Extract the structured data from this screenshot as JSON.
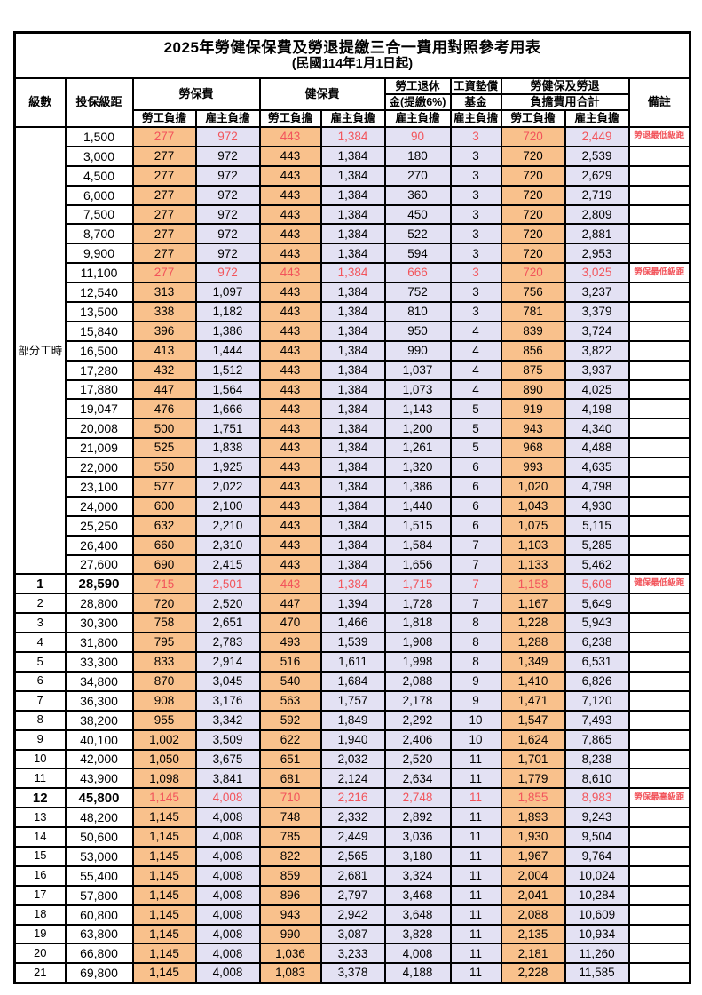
{
  "title": {
    "main": "2025年勞健保保費及勞退提繳三合一費用對照參考用表",
    "sub": "(民國114年1月1日起)"
  },
  "header": {
    "level": "級數",
    "bracket": "投保級距",
    "labor_insurance": "勞保費",
    "health_insurance": "健保費",
    "pension_line1": "勞工退休",
    "pension_line2": "金(提繳6%)",
    "wage_fund_line1": "工資墊償",
    "wage_fund_line2": "基金",
    "total_line1": "勞健保及勞退",
    "total_line2": "負擔費用合計",
    "remark": "備註",
    "employee": "勞工負擔",
    "employer": "雇主負擔"
  },
  "colors": {
    "employee_fill": "#f9c18c",
    "employer_fill": "#e3e1f3",
    "highlight_red": "#f2545b",
    "border": "#000000",
    "background": "#ffffff"
  },
  "table": {
    "part_time_label": "部分工時",
    "part_time_rowspan": 23,
    "value_col_classes": [
      "emp",
      "er",
      "emp",
      "er",
      "er",
      "er",
      "emp",
      "er"
    ],
    "rows": [
      {
        "level": "",
        "bracket": "1,500",
        "values": [
          "277",
          "972",
          "443",
          "1,384",
          "90",
          "3",
          "720",
          "2,449"
        ],
        "remark": "勞退最低級距",
        "red": true,
        "bold": false
      },
      {
        "level": "",
        "bracket": "3,000",
        "values": [
          "277",
          "972",
          "443",
          "1,384",
          "180",
          "3",
          "720",
          "2,539"
        ],
        "remark": "",
        "red": false,
        "bold": false
      },
      {
        "level": "",
        "bracket": "4,500",
        "values": [
          "277",
          "972",
          "443",
          "1,384",
          "270",
          "3",
          "720",
          "2,629"
        ],
        "remark": "",
        "red": false,
        "bold": false
      },
      {
        "level": "",
        "bracket": "6,000",
        "values": [
          "277",
          "972",
          "443",
          "1,384",
          "360",
          "3",
          "720",
          "2,719"
        ],
        "remark": "",
        "red": false,
        "bold": false
      },
      {
        "level": "",
        "bracket": "7,500",
        "values": [
          "277",
          "972",
          "443",
          "1,384",
          "450",
          "3",
          "720",
          "2,809"
        ],
        "remark": "",
        "red": false,
        "bold": false
      },
      {
        "level": "",
        "bracket": "8,700",
        "values": [
          "277",
          "972",
          "443",
          "1,384",
          "522",
          "3",
          "720",
          "2,881"
        ],
        "remark": "",
        "red": false,
        "bold": false
      },
      {
        "level": "",
        "bracket": "9,900",
        "values": [
          "277",
          "972",
          "443",
          "1,384",
          "594",
          "3",
          "720",
          "2,953"
        ],
        "remark": "",
        "red": false,
        "bold": false
      },
      {
        "level": "",
        "bracket": "11,100",
        "values": [
          "277",
          "972",
          "443",
          "1,384",
          "666",
          "3",
          "720",
          "3,025"
        ],
        "remark": "勞保最低級距",
        "red": true,
        "bold": false
      },
      {
        "level": "",
        "bracket": "12,540",
        "values": [
          "313",
          "1,097",
          "443",
          "1,384",
          "752",
          "3",
          "756",
          "3,237"
        ],
        "remark": "",
        "red": false,
        "bold": false
      },
      {
        "level": "",
        "bracket": "13,500",
        "values": [
          "338",
          "1,182",
          "443",
          "1,384",
          "810",
          "3",
          "781",
          "3,379"
        ],
        "remark": "",
        "red": false,
        "bold": false
      },
      {
        "level": "",
        "bracket": "15,840",
        "values": [
          "396",
          "1,386",
          "443",
          "1,384",
          "950",
          "4",
          "839",
          "3,724"
        ],
        "remark": "",
        "red": false,
        "bold": false
      },
      {
        "level": "",
        "bracket": "16,500",
        "values": [
          "413",
          "1,444",
          "443",
          "1,384",
          "990",
          "4",
          "856",
          "3,822"
        ],
        "remark": "",
        "red": false,
        "bold": false
      },
      {
        "level": "",
        "bracket": "17,280",
        "values": [
          "432",
          "1,512",
          "443",
          "1,384",
          "1,037",
          "4",
          "875",
          "3,937"
        ],
        "remark": "",
        "red": false,
        "bold": false
      },
      {
        "level": "",
        "bracket": "17,880",
        "values": [
          "447",
          "1,564",
          "443",
          "1,384",
          "1,073",
          "4",
          "890",
          "4,025"
        ],
        "remark": "",
        "red": false,
        "bold": false
      },
      {
        "level": "",
        "bracket": "19,047",
        "values": [
          "476",
          "1,666",
          "443",
          "1,384",
          "1,143",
          "5",
          "919",
          "4,198"
        ],
        "remark": "",
        "red": false,
        "bold": false
      },
      {
        "level": "",
        "bracket": "20,008",
        "values": [
          "500",
          "1,751",
          "443",
          "1,384",
          "1,200",
          "5",
          "943",
          "4,340"
        ],
        "remark": "",
        "red": false,
        "bold": false
      },
      {
        "level": "",
        "bracket": "21,009",
        "values": [
          "525",
          "1,838",
          "443",
          "1,384",
          "1,261",
          "5",
          "968",
          "4,488"
        ],
        "remark": "",
        "red": false,
        "bold": false
      },
      {
        "level": "",
        "bracket": "22,000",
        "values": [
          "550",
          "1,925",
          "443",
          "1,384",
          "1,320",
          "6",
          "993",
          "4,635"
        ],
        "remark": "",
        "red": false,
        "bold": false
      },
      {
        "level": "",
        "bracket": "23,100",
        "values": [
          "577",
          "2,022",
          "443",
          "1,384",
          "1,386",
          "6",
          "1,020",
          "4,798"
        ],
        "remark": "",
        "red": false,
        "bold": false
      },
      {
        "level": "",
        "bracket": "24,000",
        "values": [
          "600",
          "2,100",
          "443",
          "1,384",
          "1,440",
          "6",
          "1,043",
          "4,930"
        ],
        "remark": "",
        "red": false,
        "bold": false
      },
      {
        "level": "",
        "bracket": "25,250",
        "values": [
          "632",
          "2,210",
          "443",
          "1,384",
          "1,515",
          "6",
          "1,075",
          "5,115"
        ],
        "remark": "",
        "red": false,
        "bold": false
      },
      {
        "level": "",
        "bracket": "26,400",
        "values": [
          "660",
          "2,310",
          "443",
          "1,384",
          "1,584",
          "7",
          "1,103",
          "5,285"
        ],
        "remark": "",
        "red": false,
        "bold": false
      },
      {
        "level": "",
        "bracket": "27,600",
        "values": [
          "690",
          "2,415",
          "443",
          "1,384",
          "1,656",
          "7",
          "1,133",
          "5,462"
        ],
        "remark": "",
        "red": false,
        "bold": false
      },
      {
        "level": "1",
        "bracket": "28,590",
        "values": [
          "715",
          "2,501",
          "443",
          "1,384",
          "1,715",
          "7",
          "1,158",
          "5,608"
        ],
        "remark": "健保最低級距",
        "red": true,
        "bold": true
      },
      {
        "level": "2",
        "bracket": "28,800",
        "values": [
          "720",
          "2,520",
          "447",
          "1,394",
          "1,728",
          "7",
          "1,167",
          "5,649"
        ],
        "remark": "",
        "red": false,
        "bold": false
      },
      {
        "level": "3",
        "bracket": "30,300",
        "values": [
          "758",
          "2,651",
          "470",
          "1,466",
          "1,818",
          "8",
          "1,228",
          "5,943"
        ],
        "remark": "",
        "red": false,
        "bold": false
      },
      {
        "level": "4",
        "bracket": "31,800",
        "values": [
          "795",
          "2,783",
          "493",
          "1,539",
          "1,908",
          "8",
          "1,288",
          "6,238"
        ],
        "remark": "",
        "red": false,
        "bold": false
      },
      {
        "level": "5",
        "bracket": "33,300",
        "values": [
          "833",
          "2,914",
          "516",
          "1,611",
          "1,998",
          "8",
          "1,349",
          "6,531"
        ],
        "remark": "",
        "red": false,
        "bold": false
      },
      {
        "level": "6",
        "bracket": "34,800",
        "values": [
          "870",
          "3,045",
          "540",
          "1,684",
          "2,088",
          "9",
          "1,410",
          "6,826"
        ],
        "remark": "",
        "red": false,
        "bold": false
      },
      {
        "level": "7",
        "bracket": "36,300",
        "values": [
          "908",
          "3,176",
          "563",
          "1,757",
          "2,178",
          "9",
          "1,471",
          "7,120"
        ],
        "remark": "",
        "red": false,
        "bold": false
      },
      {
        "level": "8",
        "bracket": "38,200",
        "values": [
          "955",
          "3,342",
          "592",
          "1,849",
          "2,292",
          "10",
          "1,547",
          "7,493"
        ],
        "remark": "",
        "red": false,
        "bold": false
      },
      {
        "level": "9",
        "bracket": "40,100",
        "values": [
          "1,002",
          "3,509",
          "622",
          "1,940",
          "2,406",
          "10",
          "1,624",
          "7,865"
        ],
        "remark": "",
        "red": false,
        "bold": false
      },
      {
        "level": "10",
        "bracket": "42,000",
        "values": [
          "1,050",
          "3,675",
          "651",
          "2,032",
          "2,520",
          "11",
          "1,701",
          "8,238"
        ],
        "remark": "",
        "red": false,
        "bold": false
      },
      {
        "level": "11",
        "bracket": "43,900",
        "values": [
          "1,098",
          "3,841",
          "681",
          "2,124",
          "2,634",
          "11",
          "1,779",
          "8,610"
        ],
        "remark": "",
        "red": false,
        "bold": false
      },
      {
        "level": "12",
        "bracket": "45,800",
        "values": [
          "1,145",
          "4,008",
          "710",
          "2,216",
          "2,748",
          "11",
          "1,855",
          "8,983"
        ],
        "remark": "勞保最高級距",
        "red": true,
        "bold": true
      },
      {
        "level": "13",
        "bracket": "48,200",
        "values": [
          "1,145",
          "4,008",
          "748",
          "2,332",
          "2,892",
          "11",
          "1,893",
          "9,243"
        ],
        "remark": "",
        "red": false,
        "bold": false
      },
      {
        "level": "14",
        "bracket": "50,600",
        "values": [
          "1,145",
          "4,008",
          "785",
          "2,449",
          "3,036",
          "11",
          "1,930",
          "9,504"
        ],
        "remark": "",
        "red": false,
        "bold": false
      },
      {
        "level": "15",
        "bracket": "53,000",
        "values": [
          "1,145",
          "4,008",
          "822",
          "2,565",
          "3,180",
          "11",
          "1,967",
          "9,764"
        ],
        "remark": "",
        "red": false,
        "bold": false
      },
      {
        "level": "16",
        "bracket": "55,400",
        "values": [
          "1,145",
          "4,008",
          "859",
          "2,681",
          "3,324",
          "11",
          "2,004",
          "10,024"
        ],
        "remark": "",
        "red": false,
        "bold": false
      },
      {
        "level": "17",
        "bracket": "57,800",
        "values": [
          "1,145",
          "4,008",
          "896",
          "2,797",
          "3,468",
          "11",
          "2,041",
          "10,284"
        ],
        "remark": "",
        "red": false,
        "bold": false
      },
      {
        "level": "18",
        "bracket": "60,800",
        "values": [
          "1,145",
          "4,008",
          "943",
          "2,942",
          "3,648",
          "11",
          "2,088",
          "10,609"
        ],
        "remark": "",
        "red": false,
        "bold": false
      },
      {
        "level": "19",
        "bracket": "63,800",
        "values": [
          "1,145",
          "4,008",
          "990",
          "3,087",
          "3,828",
          "11",
          "2,135",
          "10,934"
        ],
        "remark": "",
        "red": false,
        "bold": false
      },
      {
        "level": "20",
        "bracket": "66,800",
        "values": [
          "1,145",
          "4,008",
          "1,036",
          "3,233",
          "4,008",
          "11",
          "2,181",
          "11,260"
        ],
        "remark": "",
        "red": false,
        "bold": false
      },
      {
        "level": "21",
        "bracket": "69,800",
        "values": [
          "1,145",
          "4,008",
          "1,083",
          "3,378",
          "4,188",
          "11",
          "2,228",
          "11,585"
        ],
        "remark": "",
        "red": false,
        "bold": false
      }
    ]
  }
}
